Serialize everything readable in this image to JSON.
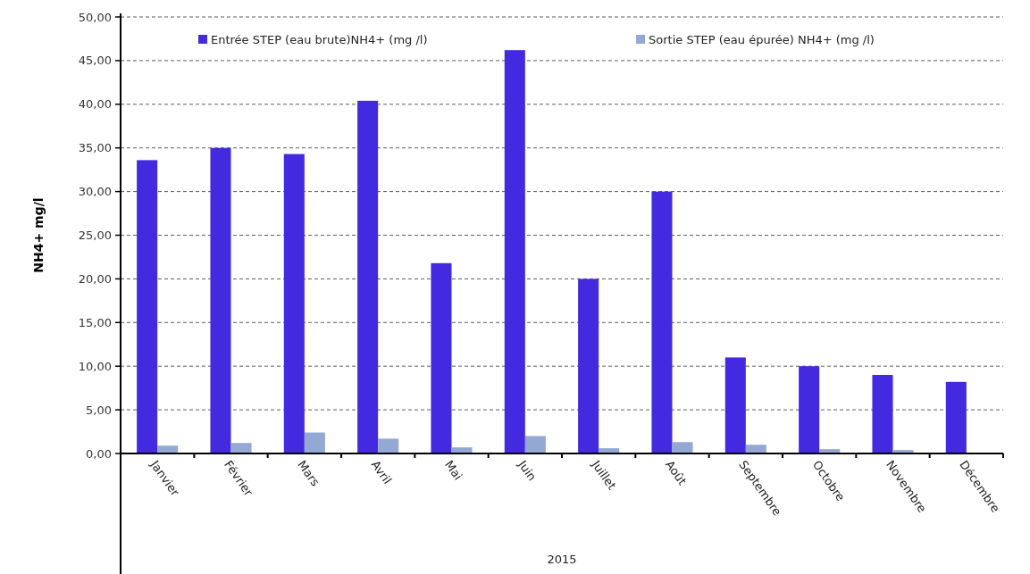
{
  "chart_data": {
    "type": "bar",
    "ylabel": "NH4+ mg/l",
    "xlabel": "2015",
    "categories": [
      "Janvier",
      "Février",
      "Mars",
      "Avril",
      "Mai",
      "Juin",
      "Juillet",
      "Août",
      "Septembre",
      "Octobre",
      "Novembre",
      "Décembre"
    ],
    "series": [
      {
        "name": "Entrée STEP (eau brute)NH4+ (mg /l)",
        "color": "#432ae0",
        "values": [
          33.6,
          35.0,
          34.3,
          40.4,
          21.8,
          46.2,
          20.0,
          30.0,
          11.0,
          10.0,
          9.0,
          8.2
        ]
      },
      {
        "name": "Sortie STEP (eau épurée) NH4+ (mg /l)",
        "color": "#94a8d4",
        "values": [
          0.9,
          1.2,
          2.4,
          1.7,
          0.7,
          2.0,
          0.6,
          1.3,
          1.0,
          0.5,
          0.4,
          null
        ]
      }
    ],
    "ylim": [
      0,
      50
    ],
    "yticks": [
      {
        "value": 0,
        "label": "0,00"
      },
      {
        "value": 5,
        "label": "5,00"
      },
      {
        "value": 10,
        "label": "10,00"
      },
      {
        "value": 15,
        "label": "15,00"
      },
      {
        "value": 20,
        "label": "20,00"
      },
      {
        "value": 25,
        "label": "25,00"
      },
      {
        "value": 30,
        "label": "30,00"
      },
      {
        "value": 35,
        "label": "35,00"
      },
      {
        "value": 40,
        "label": "40,00"
      },
      {
        "value": 45,
        "label": "45,00"
      },
      {
        "value": 50,
        "label": "50,00"
      }
    ],
    "grid": "y",
    "legend": "top"
  }
}
